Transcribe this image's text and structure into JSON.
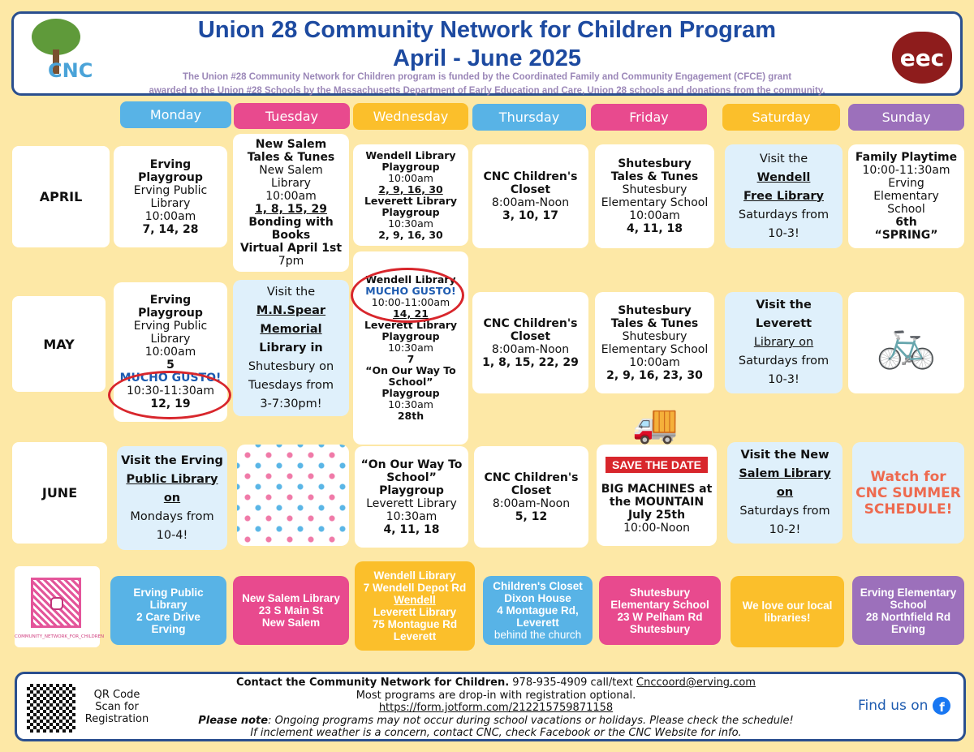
{
  "header": {
    "title_line1": "Union 28 Community Network for Children Program",
    "title_line2": "April - June 2025",
    "funding_line1": "The Union #28 Community Network for Children program is funded by the Coordinated Family and Community Engagement (CFCE) grant",
    "funding_line2": "awarded to the Union #28 Schools by the Massachusetts Department of Early Education and Care, Union 28 schools and donations from the community.",
    "logo_left": "CNC",
    "logo_right": "eec"
  },
  "colors": {
    "blue": "#58b3e6",
    "pink": "#e84a8e",
    "yellow": "#fbbf2b",
    "purple": "#9c70bb",
    "background": "#fde8a6",
    "title": "#1d4aa0"
  },
  "days": [
    "Monday",
    "Tuesday",
    "Wednesday",
    "Thursday",
    "Friday",
    "Saturday",
    "Sunday"
  ],
  "months": [
    "APRIL",
    "MAY",
    "JUNE"
  ],
  "cells": {
    "apr_mon": [
      {
        "t": "Erving",
        "b": true
      },
      {
        "t": "Playgroup",
        "b": true
      },
      {
        "t": "Erving Public"
      },
      {
        "t": "Library"
      },
      {
        "t": "10:00am"
      },
      {
        "t": "7, 14, 28",
        "b": true
      }
    ],
    "apr_tue": [
      {
        "t": "New Salem",
        "b": true
      },
      {
        "t": "Tales & Tunes",
        "b": true
      },
      {
        "t": "New Salem"
      },
      {
        "t": "Library"
      },
      {
        "t": "10:00am"
      },
      {
        "t": "1, 8, 15, 29",
        "b": true,
        "u": true
      },
      {
        "t": "Bonding with",
        "b": true
      },
      {
        "t": "Books",
        "b": true
      },
      {
        "t": "Virtual April 1st",
        "b": true
      },
      {
        "t": "7pm"
      }
    ],
    "apr_wed": [
      {
        "t": "Wendell Library",
        "b": true
      },
      {
        "t": "Playgroup",
        "b": true
      },
      {
        "t": "10:00am"
      },
      {
        "t": "2, 9, 16, 30",
        "b": true,
        "u": true
      },
      {
        "t": "Leverett Library",
        "b": true
      },
      {
        "t": "Playgroup",
        "b": true
      },
      {
        "t": "10:30am"
      },
      {
        "t": "2, 9, 16, 30",
        "b": true
      }
    ],
    "apr_thu": [
      {
        "t": "CNC Children's",
        "b": true
      },
      {
        "t": "Closet",
        "b": true
      },
      {
        "t": "8:00am-Noon"
      },
      {
        "t": "3, 10, 17",
        "b": true
      }
    ],
    "apr_fri": [
      {
        "t": "Shutesbury",
        "b": true
      },
      {
        "t": "Tales & Tunes",
        "b": true
      },
      {
        "t": "Shutesbury"
      },
      {
        "t": "Elementary School"
      },
      {
        "t": "10:00am"
      },
      {
        "t": "4, 11, 18",
        "b": true
      }
    ],
    "apr_sat": [
      {
        "t": "Visit the "
      },
      {
        "t": "Wendell",
        "b": true,
        "u": true
      },
      {
        "t": "Free Library",
        "b": true,
        "u": true
      },
      {
        "t": "Saturdays from"
      },
      {
        "t": "10-3!"
      }
    ],
    "apr_sun": [
      {
        "t": "Family Playtime",
        "b": true
      },
      {
        "t": "10:00-11:30am"
      },
      {
        "t": "Erving"
      },
      {
        "t": "Elementary"
      },
      {
        "t": "School"
      },
      {
        "t": "6th",
        "b": true
      },
      {
        "t": "“SPRING”",
        "b": true
      }
    ],
    "may_wed": [
      {
        "t": "Wendell Library",
        "b": true
      },
      {
        "t": " "
      },
      {
        "t": "MUCHO GUSTO!",
        "blue": true
      },
      {
        "t": "10:00-11:00am"
      },
      {
        "t": "14, 21",
        "b": true,
        "u": true
      },
      {
        "t": " "
      },
      {
        "t": "Leverett Library",
        "b": true
      },
      {
        "t": "Playgroup",
        "b": true
      },
      {
        "t": "10:30am"
      },
      {
        "t": "7",
        "b": true
      },
      {
        "t": "“On Our Way To",
        "b": true
      },
      {
        "t": "School”",
        "b": true
      },
      {
        "t": "Playgroup",
        "b": true
      },
      {
        "t": "10:30am"
      },
      {
        "t": "28th",
        "b": true
      }
    ],
    "may_mon": [
      {
        "t": "Erving",
        "b": true
      },
      {
        "t": "Playgroup",
        "b": true
      },
      {
        "t": "Erving Public"
      },
      {
        "t": "Library"
      },
      {
        "t": "10:00am"
      },
      {
        "t": "5",
        "b": true
      },
      {
        "t": " "
      },
      {
        "t": "MUCHO GUSTO!",
        "blue": true
      },
      {
        "t": "10:30-11:30am"
      },
      {
        "t": "12, 19",
        "b": true
      }
    ],
    "may_tue": [
      {
        "t": "Visit the"
      },
      {
        "t": "M.N.Spear",
        "b": true,
        "u": true
      },
      {
        "t": "Memorial",
        "b": true,
        "u": true
      },
      {
        "t": "Library in",
        "b": true
      },
      {
        "t": "Shutesbury on"
      },
      {
        "t": "Tuesdays from"
      },
      {
        "t": "3-7:30pm!"
      }
    ],
    "may_thu": [
      {
        "t": "CNC Children's",
        "b": true
      },
      {
        "t": "Closet",
        "b": true
      },
      {
        "t": "8:00am-Noon"
      },
      {
        "t": "1, 8, 15, 22, 29",
        "b": true
      }
    ],
    "may_fri": [
      {
        "t": "Shutesbury",
        "b": true
      },
      {
        "t": "Tales & Tunes",
        "b": true
      },
      {
        "t": "Shutesbury"
      },
      {
        "t": "Elementary School"
      },
      {
        "t": "10:00am"
      },
      {
        "t": "2, 9, 16, 23, 30",
        "b": true
      }
    ],
    "may_sat": [
      {
        "t": "Visit the Leverett",
        "b": true
      },
      {
        "t": "Library on",
        "u": true
      },
      {
        "t": "Saturdays from"
      },
      {
        "t": "10-3!"
      }
    ],
    "jun_mon": [
      {
        "t": "Visit the Erving",
        "b": true
      },
      {
        "t": "Public Library on",
        "b": true,
        "u": true
      },
      {
        "t": "Mondays from"
      },
      {
        "t": "10-4!"
      }
    ],
    "jun_wed": [
      {
        "t": "“On Our Way To",
        "b": true
      },
      {
        "t": "School”",
        "b": true
      },
      {
        "t": "Playgroup",
        "b": true
      },
      {
        "t": "Leverett Library"
      },
      {
        "t": "10:30am"
      },
      {
        "t": "4, 11, 18",
        "b": true
      }
    ],
    "jun_thu": [
      {
        "t": "CNC Children's",
        "b": true
      },
      {
        "t": "Closet",
        "b": true
      },
      {
        "t": "8:00am-Noon"
      },
      {
        "t": "5, 12",
        "b": true
      }
    ],
    "jun_fri": [
      {
        "t": "SAVE THE DATE",
        "save": true
      },
      {
        "t": "BIG MACHINES at",
        "b": true
      },
      {
        "t": "the MOUNTAIN",
        "b": true
      },
      {
        "t": "July 25th",
        "b": true
      },
      {
        "t": "10:00-Noon"
      }
    ],
    "jun_sat": [
      {
        "t": "Visit the New",
        "b": true
      },
      {
        "t": "Salem Library on",
        "b": true,
        "u": true
      },
      {
        "t": "Saturdays from"
      },
      {
        "t": "10-2!"
      }
    ],
    "jun_sun": [
      {
        "t": "Watch for",
        "orange": true
      },
      {
        "t": "CNC SUMMER",
        "orange": true
      },
      {
        "t": "SCHEDULE!",
        "orange": true
      }
    ]
  },
  "addresses": {
    "mon": [
      {
        "t": "Erving Public"
      },
      {
        "t": "Library"
      },
      {
        "t": "2 Care Drive"
      },
      {
        "t": "Erving"
      }
    ],
    "tue": [
      {
        "t": "New Salem Library"
      },
      {
        "t": "23 S Main St"
      },
      {
        "t": "New Salem"
      }
    ],
    "wed": [
      {
        "t": "Wendell Library"
      },
      {
        "t": "7 Wendell Depot Rd"
      },
      {
        "t": "Wendell",
        "u": true
      },
      {
        "t": " "
      },
      {
        "t": "Leverett Library"
      },
      {
        "t": "75 Montague Rd"
      },
      {
        "t": "Leverett"
      }
    ],
    "thu": [
      {
        "t": "Children's Closet"
      },
      {
        "t": "Dixon House"
      },
      {
        "t": "4 Montague Rd,"
      },
      {
        "t": "Leverett"
      },
      {
        "t": "behind the church",
        "light": true
      }
    ],
    "fri": [
      {
        "t": "Shutesbury"
      },
      {
        "t": "Elementary School"
      },
      {
        "t": "23 W Pelham Rd"
      },
      {
        "t": "Shutesbury"
      }
    ],
    "sat": [
      {
        "t": "We love our local"
      },
      {
        "t": "libraries!"
      }
    ],
    "sun": [
      {
        "t": "Erving Elementary"
      },
      {
        "t": "School"
      },
      {
        "t": "28 Northfield Rd"
      },
      {
        "t": "Erving"
      }
    ]
  },
  "social_qr_caption": "COMMUNITY_NETWORK_FOR_CHILDREN",
  "footer": {
    "contact_bold": "Contact the Community Network for Children.",
    "contact_phone": " 978-935-4909 call/text ",
    "contact_email": "Cnccoord@erving.com",
    "dropin": "Most programs are drop-in with registration optional.",
    "url": "https://form.jotform.com/212215759871158",
    "note_label": "Please note",
    "note": ": Ongoing programs may not occur during school vacations or holidays. Please check the schedule!",
    "weather": "If inclement weather is a concern, contact CNC, check Facebook or the CNC Website for info.",
    "qr_label_1": "QR Code",
    "qr_label_2": "Scan for",
    "qr_label_3": "Registration",
    "find_us": "Find us on"
  }
}
